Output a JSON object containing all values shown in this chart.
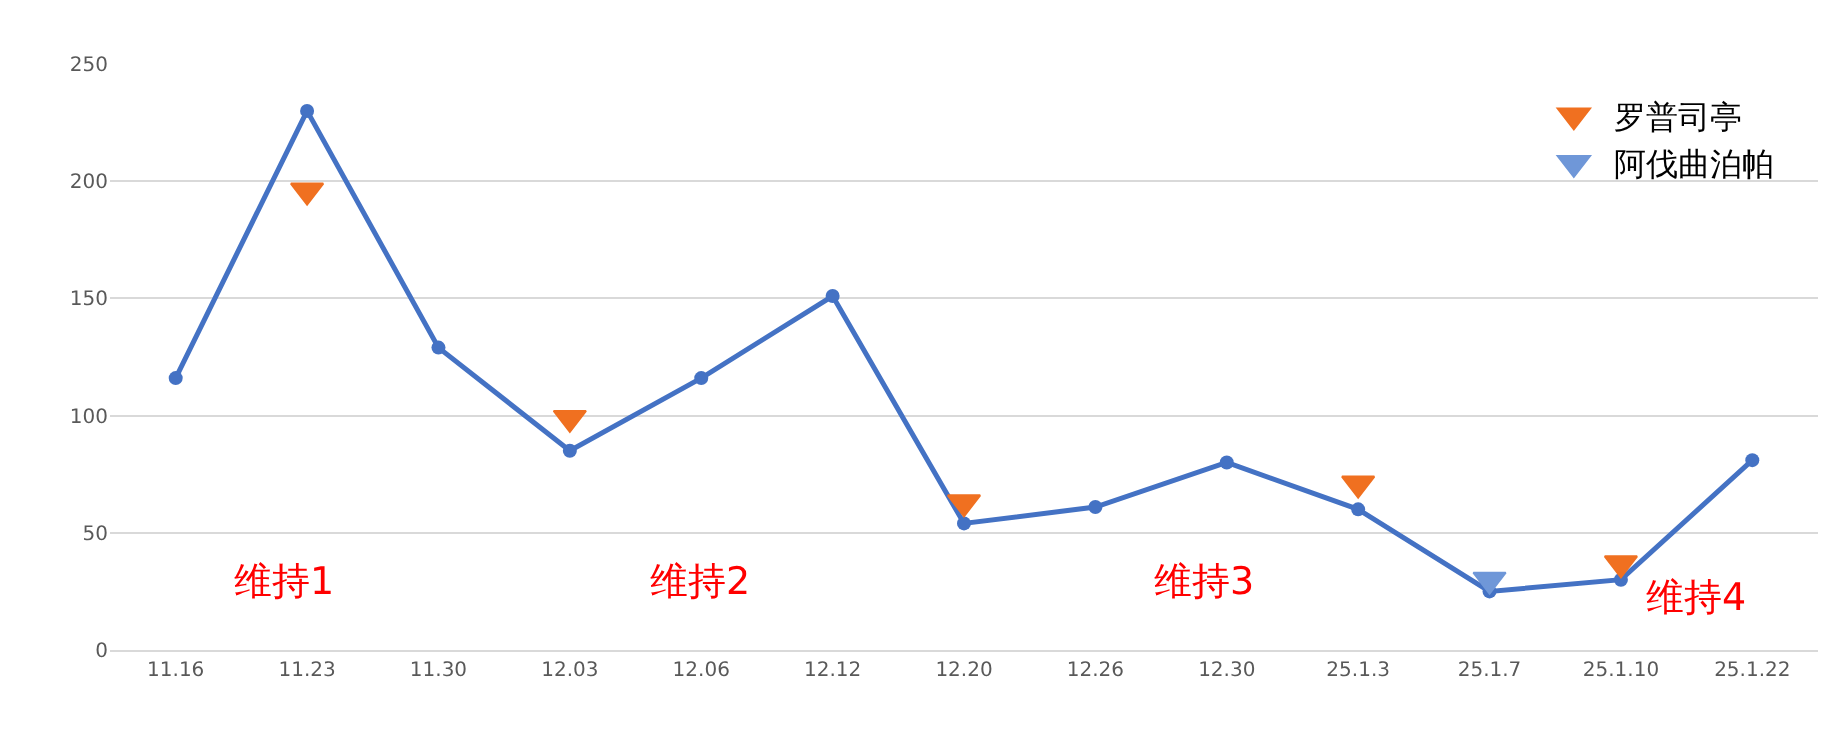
{
  "chart_data": {
    "type": "line",
    "categories": [
      "11.16",
      "11.23",
      "11.30",
      "12.03",
      "12.06",
      "12.12",
      "12.20",
      "12.26",
      "12.30",
      "25.1.3",
      "25.1.7",
      "25.1.10",
      "25.1.22"
    ],
    "series": [
      {
        "color": "#4472c4",
        "values": [
          116,
          230,
          129,
          85,
          116,
          151,
          54,
          61,
          80,
          60,
          25,
          30,
          81
        ],
        "marker": "circle"
      },
      {
        "type": "scatter",
        "name": "罗普司亭",
        "color": "#f07020",
        "x": [
          "11.23",
          "12.03",
          "12.20",
          "25.1.3",
          "25.1.10"
        ],
        "values": [
          196,
          99,
          63,
          71,
          37
        ],
        "marker": "triangle"
      },
      {
        "type": "scatter",
        "name": "阿伐曲泊帕",
        "color": "#6f97d8",
        "x": [
          "25.1.7"
        ],
        "values": [
          30
        ],
        "marker": "triangle"
      }
    ],
    "annotations": [
      "维持1",
      "维持2",
      "维持3",
      "维持4"
    ],
    "ylim": [
      0,
      250
    ],
    "yticks": [
      0,
      50,
      100,
      150,
      200,
      250
    ],
    "grid": "y",
    "legend": "top right"
  }
}
